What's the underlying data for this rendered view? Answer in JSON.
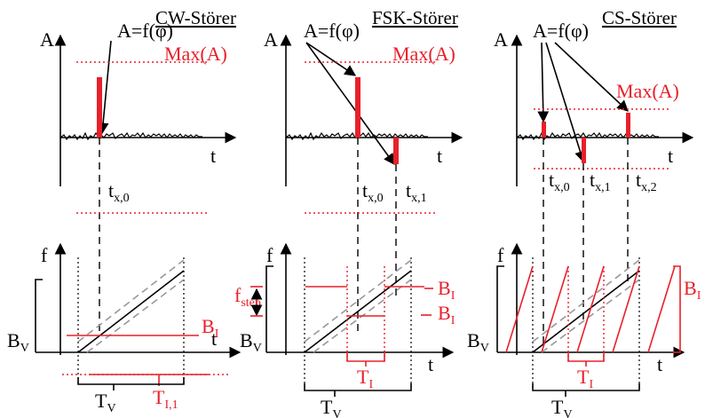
{
  "labels": {
    "cw_title": "CW-Störer",
    "fsk_title": "FSK-Störer",
    "cs_title": "CS-Störer",
    "amp_func": "A=f(φ)",
    "max_a": "Max(A)",
    "axis_a": "A",
    "axis_t": "t",
    "axis_f": "f",
    "t": "t",
    "x0": "x,0",
    "x1": "x,1",
    "x2": "x,2",
    "B": "B",
    "V": "V",
    "I": "I",
    "T": "T",
    "I1": "I,1",
    "f": "f",
    "step": "step"
  },
  "colors": {
    "interferer": "#e8202a",
    "noise": "#000000"
  }
}
